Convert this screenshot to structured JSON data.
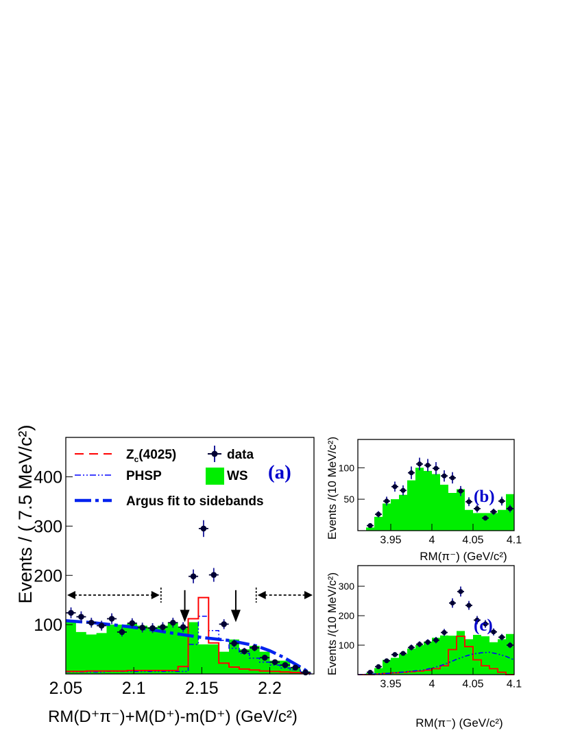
{
  "colors": {
    "data": "#000033",
    "ws": "#00ee00",
    "zc": "#ff0000",
    "phsp": "#0000ff",
    "argus": "#0022ee",
    "panel_label": "#0000cc",
    "axis": "#000000"
  },
  "chart_data": [
    {
      "panel": "(a)",
      "type": "scatter",
      "xlabel": "RM(D⁺π⁻)+M(D⁺)-m(D⁺)  (GeV/c²)",
      "ylabel": "Events / ( 7.5 MeV/c²)",
      "xlim": [
        2.05,
        2.2325
      ],
      "ylim": [
        0,
        480
      ],
      "xticks": [
        2.05,
        2.1,
        2.15,
        2.2
      ],
      "xtick_labels": [
        "2.05",
        "2.1",
        "2.15",
        "2.2"
      ],
      "yticks": [
        100,
        200,
        300,
        400
      ],
      "ytick_labels": [
        "100",
        "200",
        "300",
        "400"
      ],
      "legend_position": "top-left",
      "legend": [
        {
          "key": "zc",
          "label": "Z",
          "sub": "c",
          "suffix": "(4025)",
          "style": "dashed-line"
        },
        {
          "key": "data",
          "label": "data",
          "style": "marker"
        },
        {
          "key": "phsp",
          "label": "PHSP",
          "style": "dash-dot-dot-line"
        },
        {
          "key": "ws",
          "label": "WS",
          "style": "filled-box"
        },
        {
          "key": "argus",
          "label": "Argus fit to sidebands",
          "style": "thick-dash-dot-line"
        }
      ],
      "signal_arrows_x": [
        2.1375,
        2.175
      ],
      "sideband_ranges": [
        [
          2.05,
          2.12
        ],
        [
          2.19,
          2.2325
        ]
      ],
      "data": {
        "x": [
          2.0538,
          2.0613,
          2.0688,
          2.0763,
          2.0838,
          2.0913,
          2.0988,
          2.1063,
          2.1138,
          2.1213,
          2.1288,
          2.1363,
          2.1438,
          2.1513,
          2.1588,
          2.1663,
          2.1738,
          2.1813,
          2.1888,
          2.1963,
          2.2038,
          2.2113,
          2.2188,
          2.2263
        ],
        "y": [
          124,
          116,
          104,
          98,
          112,
          85,
          103,
          94,
          93,
          95,
          104,
          95,
          198,
          295,
          201,
          101,
          62,
          46,
          53,
          33,
          24,
          18,
          13,
          3
        ],
        "err": [
          11,
          11,
          10,
          10,
          11,
          9,
          10,
          10,
          10,
          10,
          10,
          10,
          14,
          17,
          14,
          10,
          8,
          7,
          7,
          6,
          5,
          4,
          4,
          2
        ]
      },
      "ws": {
        "edges": [
          2.05,
          2.0575,
          2.065,
          2.0725,
          2.08,
          2.0875,
          2.095,
          2.1025,
          2.11,
          2.1175,
          2.125,
          2.1325,
          2.14,
          2.1475,
          2.155,
          2.1625,
          2.17,
          2.1775,
          2.185,
          2.1925,
          2.2,
          2.2075,
          2.215,
          2.2225,
          2.23
        ],
        "values": [
          108,
          85,
          80,
          83,
          100,
          100,
          102,
          98,
          95,
          98,
          105,
          96,
          105,
          60,
          60,
          45,
          70,
          50,
          57,
          45,
          27,
          27,
          12,
          5
        ]
      },
      "zc": {
        "edges": [
          2.05,
          2.0575,
          2.065,
          2.0725,
          2.08,
          2.0875,
          2.095,
          2.1025,
          2.11,
          2.1175,
          2.125,
          2.1325,
          2.14,
          2.1475,
          2.155,
          2.1625,
          2.17,
          2.1775,
          2.185,
          2.1925,
          2.2,
          2.2075,
          2.215,
          2.2225,
          2.23
        ],
        "values": [
          5,
          5,
          6,
          6,
          6,
          6,
          7,
          7,
          7,
          7,
          7,
          15,
          112,
          155,
          63,
          22,
          14,
          10,
          8,
          6,
          5,
          4,
          3,
          2
        ]
      },
      "phsp": {
        "edges": [
          2.05,
          2.0575,
          2.065,
          2.0725,
          2.08,
          2.0875,
          2.095,
          2.1025,
          2.11,
          2.1175,
          2.125,
          2.1325,
          2.14,
          2.1475,
          2.155,
          2.1625,
          2.17,
          2.1775,
          2.185,
          2.1925,
          2.2,
          2.2075,
          2.215,
          2.2225,
          2.23
        ],
        "values": [
          4,
          4,
          4,
          4,
          5,
          5,
          5,
          5,
          5,
          5,
          5,
          5,
          60,
          117,
          88,
          68,
          52,
          42,
          32,
          24,
          18,
          12,
          8,
          4
        ]
      },
      "argus": {
        "x": [
          2.05,
          2.07,
          2.09,
          2.11,
          2.13,
          2.15,
          2.17,
          2.19,
          2.2,
          2.21,
          2.22,
          2.225,
          2.23
        ],
        "y": [
          108,
          104,
          98,
          91,
          82,
          74,
          68,
          57,
          47,
          34,
          18,
          10,
          0
        ]
      }
    },
    {
      "panel": "(b)",
      "type": "scatter",
      "xlabel": "RM(π⁻) (GeV/c²)",
      "ylabel": "Events /(10 MeV/c²)",
      "xlim": [
        3.91,
        4.1
      ],
      "ylim": [
        0,
        145
      ],
      "xticks": [
        3.95,
        4.0,
        4.05,
        4.1
      ],
      "xtick_labels": [
        "3.95",
        "4",
        "4.05",
        "4.1"
      ],
      "yticks": [
        50,
        100
      ],
      "ytick_labels": [
        "50",
        "100"
      ],
      "data": {
        "x": [
          3.925,
          3.935,
          3.945,
          3.955,
          3.965,
          3.975,
          3.985,
          3.995,
          4.005,
          4.015,
          4.025,
          4.035,
          4.045,
          4.055,
          4.065,
          4.075,
          4.085,
          4.095
        ],
        "y": [
          8,
          26,
          47,
          70,
          64,
          92,
          106,
          104,
          99,
          87,
          84,
          63,
          46,
          35,
          20,
          30,
          47,
          35
        ],
        "err": [
          3,
          5,
          7,
          8,
          8,
          10,
          10,
          10,
          10,
          9,
          9,
          8,
          7,
          6,
          4,
          5,
          7,
          6
        ]
      },
      "ws": {
        "edges": [
          3.91,
          3.92,
          3.93,
          3.94,
          3.95,
          3.96,
          3.97,
          3.98,
          3.99,
          4.0,
          4.01,
          4.02,
          4.03,
          4.04,
          4.05,
          4.06,
          4.07,
          4.08,
          4.09,
          4.1
        ],
        "values": [
          0,
          5,
          22,
          43,
          50,
          57,
          80,
          100,
          95,
          90,
          73,
          60,
          66,
          33,
          28,
          28,
          28,
          33,
          58
        ]
      }
    },
    {
      "panel": "(c)",
      "type": "scatter",
      "xlabel": "RM(π⁻) (GeV/c²)",
      "ylabel": "Events /(10 MeV/c²)",
      "xlim": [
        3.91,
        4.1
      ],
      "ylim": [
        0,
        370
      ],
      "xticks": [
        3.95,
        4.0,
        4.05,
        4.1
      ],
      "xtick_labels": [
        "3.95",
        "4",
        "4.05",
        "4.1"
      ],
      "yticks": [
        100,
        200,
        300
      ],
      "ytick_labels": [
        "100",
        "200",
        "300"
      ],
      "data": {
        "x": [
          3.925,
          3.935,
          3.945,
          3.955,
          3.965,
          3.975,
          3.985,
          3.995,
          4.005,
          4.015,
          4.025,
          4.035,
          4.045,
          4.055,
          4.065,
          4.075,
          4.085,
          4.095
        ],
        "y": [
          8,
          27,
          47,
          68,
          72,
          92,
          103,
          110,
          117,
          143,
          243,
          282,
          235,
          185,
          172,
          145,
          127,
          100
        ],
        "err": [
          3,
          5,
          7,
          8,
          8,
          10,
          10,
          10,
          11,
          12,
          16,
          17,
          15,
          14,
          13,
          12,
          11,
          10
        ]
      },
      "ws": {
        "edges": [
          3.91,
          3.92,
          3.93,
          3.94,
          3.95,
          3.96,
          3.97,
          3.98,
          3.99,
          4.0,
          4.01,
          4.02,
          4.03,
          4.04,
          4.05,
          4.06,
          4.07,
          4.08,
          4.09,
          4.1
        ],
        "values": [
          0,
          5,
          22,
          50,
          57,
          70,
          88,
          100,
          112,
          125,
          133,
          132,
          148,
          120,
          135,
          130,
          110,
          120,
          138
        ]
      },
      "zc": {
        "edges": [
          3.91,
          3.92,
          3.93,
          3.94,
          3.95,
          3.96,
          3.97,
          3.98,
          3.99,
          4.0,
          4.01,
          4.02,
          4.03,
          4.04,
          4.05,
          4.06,
          4.07,
          4.08,
          4.09,
          4.1
        ],
        "values": [
          0,
          0,
          2,
          4,
          6,
          8,
          10,
          12,
          15,
          20,
          30,
          85,
          130,
          95,
          50,
          30,
          20,
          8,
          0
        ]
      },
      "phsp": {
        "x": [
          3.91,
          3.93,
          3.95,
          3.97,
          3.99,
          4.0,
          4.01,
          4.02,
          4.03,
          4.04,
          4.05,
          4.06,
          4.07,
          4.08,
          4.09,
          4.1
        ],
        "y": [
          0,
          2,
          5,
          10,
          16,
          22,
          30,
          40,
          52,
          62,
          70,
          74,
          76,
          70,
          62,
          50
        ]
      }
    }
  ]
}
